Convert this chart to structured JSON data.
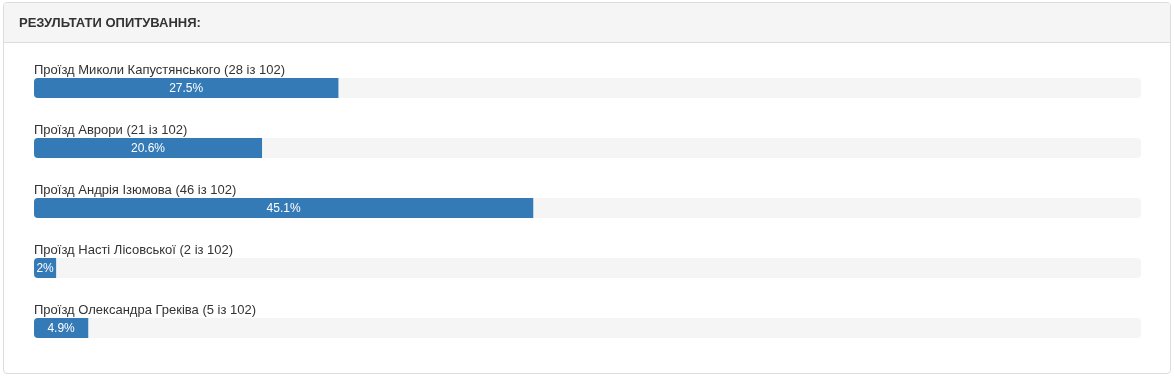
{
  "chart_data": {
    "type": "bar",
    "orientation": "horizontal",
    "title": "РЕЗУЛЬТАТИ ОПИТУВАННЯ:",
    "categories": [
      "Проїзд Миколи Капустянського (28 із 102)",
      "Проїзд Аврори (21 із 102)",
      "Проїзд Андрія Ізюмова (46 із 102)",
      "Проїзд Насті Лісовської (2 із 102)",
      "Проїзд Олександра Греківа (5 із 102)"
    ],
    "values": [
      27.5,
      20.6,
      45.1,
      2,
      4.9
    ],
    "value_labels": [
      "27.5%",
      "20.6%",
      "45.1%",
      "2%",
      "4.9%"
    ],
    "color": "#337ab7",
    "xlim": [
      0,
      100
    ],
    "tick_labels": "y"
  }
}
